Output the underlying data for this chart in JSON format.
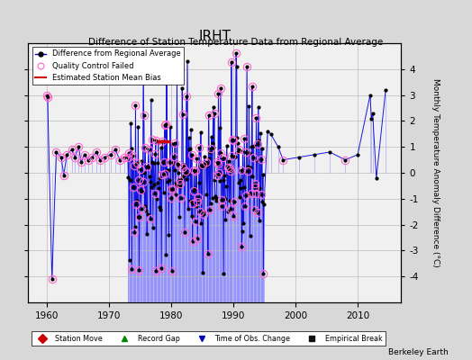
{
  "title": "IRHT",
  "subtitle": "Difference of Station Temperature Data from Regional Average",
  "ylabel": "Monthly Temperature Anomaly Difference (°C)",
  "credit": "Berkeley Earth",
  "xlim": [
    1957,
    2017
  ],
  "ylim": [
    -5,
    5
  ],
  "yticks": [
    -4,
    -3,
    -2,
    -1,
    0,
    1,
    2,
    3,
    4
  ],
  "xticks": [
    1960,
    1970,
    1980,
    1990,
    2000,
    2010
  ],
  "bg_color": "#d8d8d8",
  "plot_bg_color": "#f0f0f0",
  "grid_color": "#bbbbbb",
  "line_color": "#0000dd",
  "stem_color": "#6666ff",
  "qc_fail_color": "#ff66cc",
  "bias_color": "#cc0000",
  "station_move_color": "#cc0000",
  "record_gap_color": "#008800",
  "tobs_color": "#0000bb",
  "emp_break_color": "#111111"
}
